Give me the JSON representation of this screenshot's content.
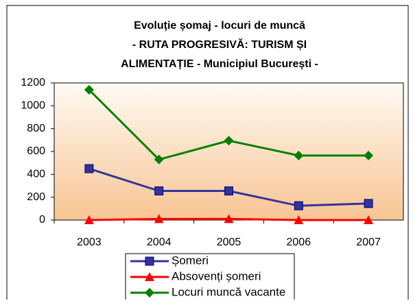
{
  "chart_data": {
    "type": "line",
    "title": [
      "Evoluție șomaj - locuri de muncă",
      "- RUTA PROGRESIVĂ: TURISM ȘI",
      "ALIMENTAȚIE - Municipiul București -"
    ],
    "categories": [
      "2003",
      "2004",
      "2005",
      "2006",
      "2007"
    ],
    "series": [
      {
        "name": "Șomeri",
        "color": "#333399",
        "marker": "square",
        "values": [
          450,
          255,
          255,
          125,
          145
        ]
      },
      {
        "name": "Absovenți șomeri",
        "color": "#ff0000",
        "marker": "triangle",
        "values": [
          0,
          10,
          10,
          0,
          0
        ]
      },
      {
        "name": "Locuri muncă vacante",
        "color": "#008000",
        "marker": "diamond",
        "values": [
          1140,
          530,
          695,
          565,
          565
        ]
      }
    ],
    "ylim": [
      0,
      1200
    ],
    "yticks": [
      0,
      200,
      400,
      600,
      800,
      1000,
      1200
    ],
    "grid": false,
    "legend": "bottom"
  }
}
